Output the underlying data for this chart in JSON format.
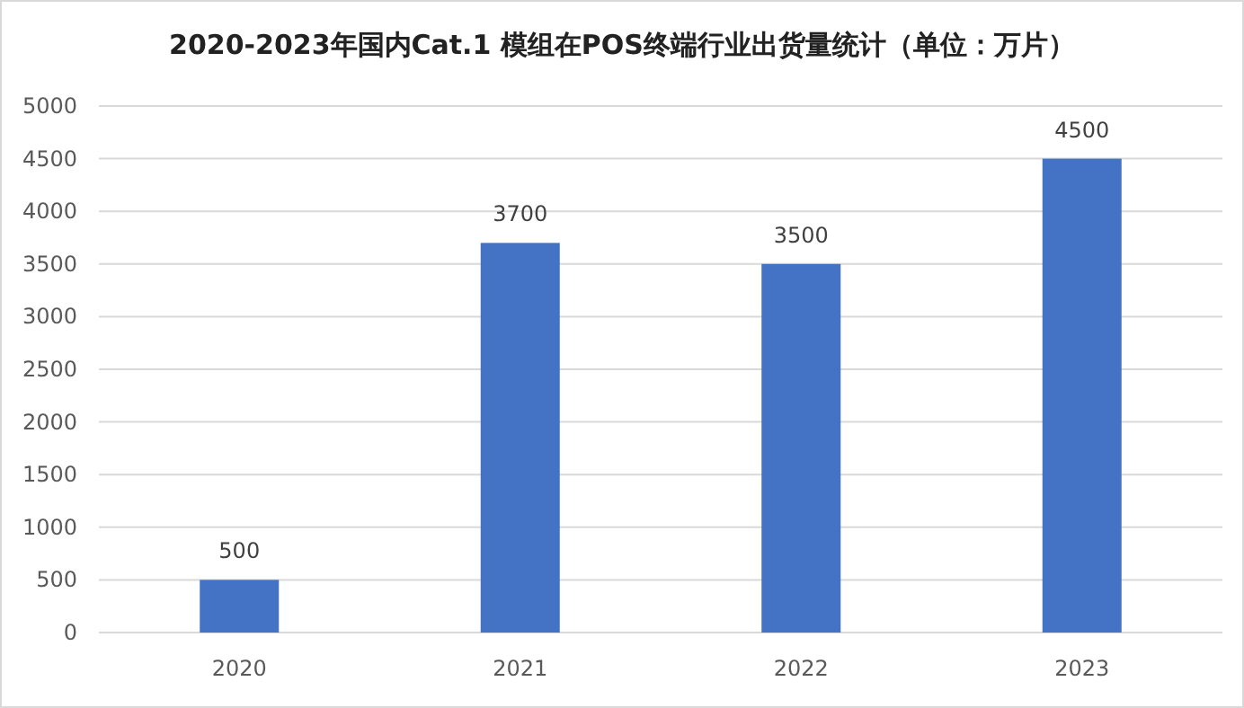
{
  "chart_data": {
    "type": "bar",
    "title": "2020-2023年国内Cat.1 模组在POS终端行业出货量统计（单位：万片）",
    "categories": [
      "2020",
      "2021",
      "2022",
      "2023"
    ],
    "values": [
      500,
      3700,
      3500,
      4500
    ],
    "color": "#4472c4",
    "ylim": [
      0,
      5000
    ],
    "yticks": [
      0,
      500,
      1000,
      1500,
      2000,
      2500,
      3000,
      3500,
      4000,
      4500,
      5000
    ],
    "grid": "y",
    "data_labels": true
  }
}
